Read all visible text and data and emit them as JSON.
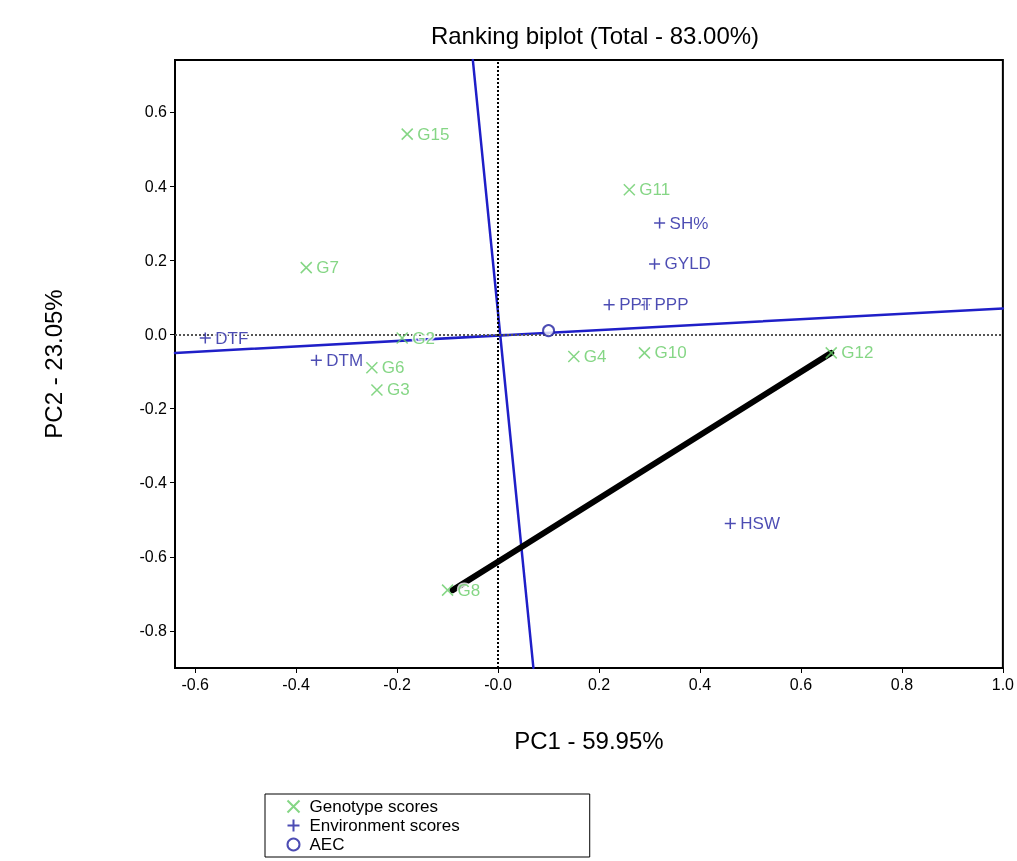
{
  "chart_data": {
    "type": "scatter",
    "title": "Ranking biplot (Total - 83.00%)",
    "xlabel": "PC1 - 59.95%",
    "ylabel": "PC2 - 23.05%",
    "xlim": [
      -0.64,
      1.0
    ],
    "xticks": [
      -0.6,
      -0.4,
      -0.2,
      {
        "value": 0,
        "label": "-0.0"
      },
      0.2,
      0.4,
      0.6,
      0.8,
      {
        "value": 1,
        "label": "1.0"
      }
    ],
    "ylim": [
      -0.9,
      0.74
    ],
    "yticks": [
      -0.8,
      -0.6,
      -0.4,
      -0.2,
      {
        "value": 0,
        "label": "0.0"
      },
      0.2,
      0.4,
      0.6
    ],
    "grid": false,
    "legend": "bottom",
    "ref_lines": [
      {
        "axis": "x",
        "value": 0,
        "label": null,
        "color": "#000000",
        "line_style": "dotted"
      },
      {
        "axis": "y",
        "value": 0,
        "label": null,
        "color": "#555555",
        "line_style": "dotted"
      }
    ],
    "series": [
      {
        "name": "Genotype scores",
        "marker": "cross",
        "color": "#66cc66",
        "x": [
          -0.18,
          -0.38,
          -0.19,
          -0.25,
          -0.24,
          -0.1,
          0.26,
          0.15,
          0.29,
          0.66
        ],
        "values": [
          0.54,
          0.18,
          -0.01,
          -0.09,
          -0.15,
          -0.69,
          0.39,
          -0.06,
          -0.05,
          -0.05
        ],
        "value_labels": [
          "G15",
          "G7",
          "G2",
          "G6",
          "G3",
          "G8",
          "G11",
          "G4",
          "G10",
          "G12"
        ]
      },
      {
        "name": "Environment scores",
        "marker": "plus",
        "color": "#1f1fa0",
        "x": [
          -0.58,
          -0.36,
          0.32,
          0.31,
          0.22,
          0.29,
          0.46
        ],
        "values": [
          -0.01,
          -0.07,
          0.3,
          0.19,
          0.08,
          0.08,
          -0.51
        ],
        "value_labels": [
          "DTF",
          "DTM",
          "SH%",
          "GYLD",
          "PPT",
          "PPP",
          "HSW"
        ]
      },
      {
        "name": "AEC",
        "marker": "circle",
        "color": "#1f1fa0",
        "x": [
          0.1
        ],
        "values": [
          0.01
        ]
      },
      {
        "type": "line",
        "color": "#1f1fc8",
        "line_style": "solid",
        "x": [
          -0.64,
          1.0
        ],
        "values": [
          -0.05,
          0.07
        ]
      },
      {
        "type": "line",
        "color": "#1f1fc8",
        "line_style": "solid",
        "x": [
          -0.05,
          0.07
        ],
        "values": [
          0.74,
          -0.9
        ]
      },
      {
        "type": "line",
        "color": "#000000",
        "line_style": "solid",
        "x": [
          -0.09,
          0.66
        ],
        "values": [
          -0.69,
          -0.05
        ]
      }
    ]
  }
}
